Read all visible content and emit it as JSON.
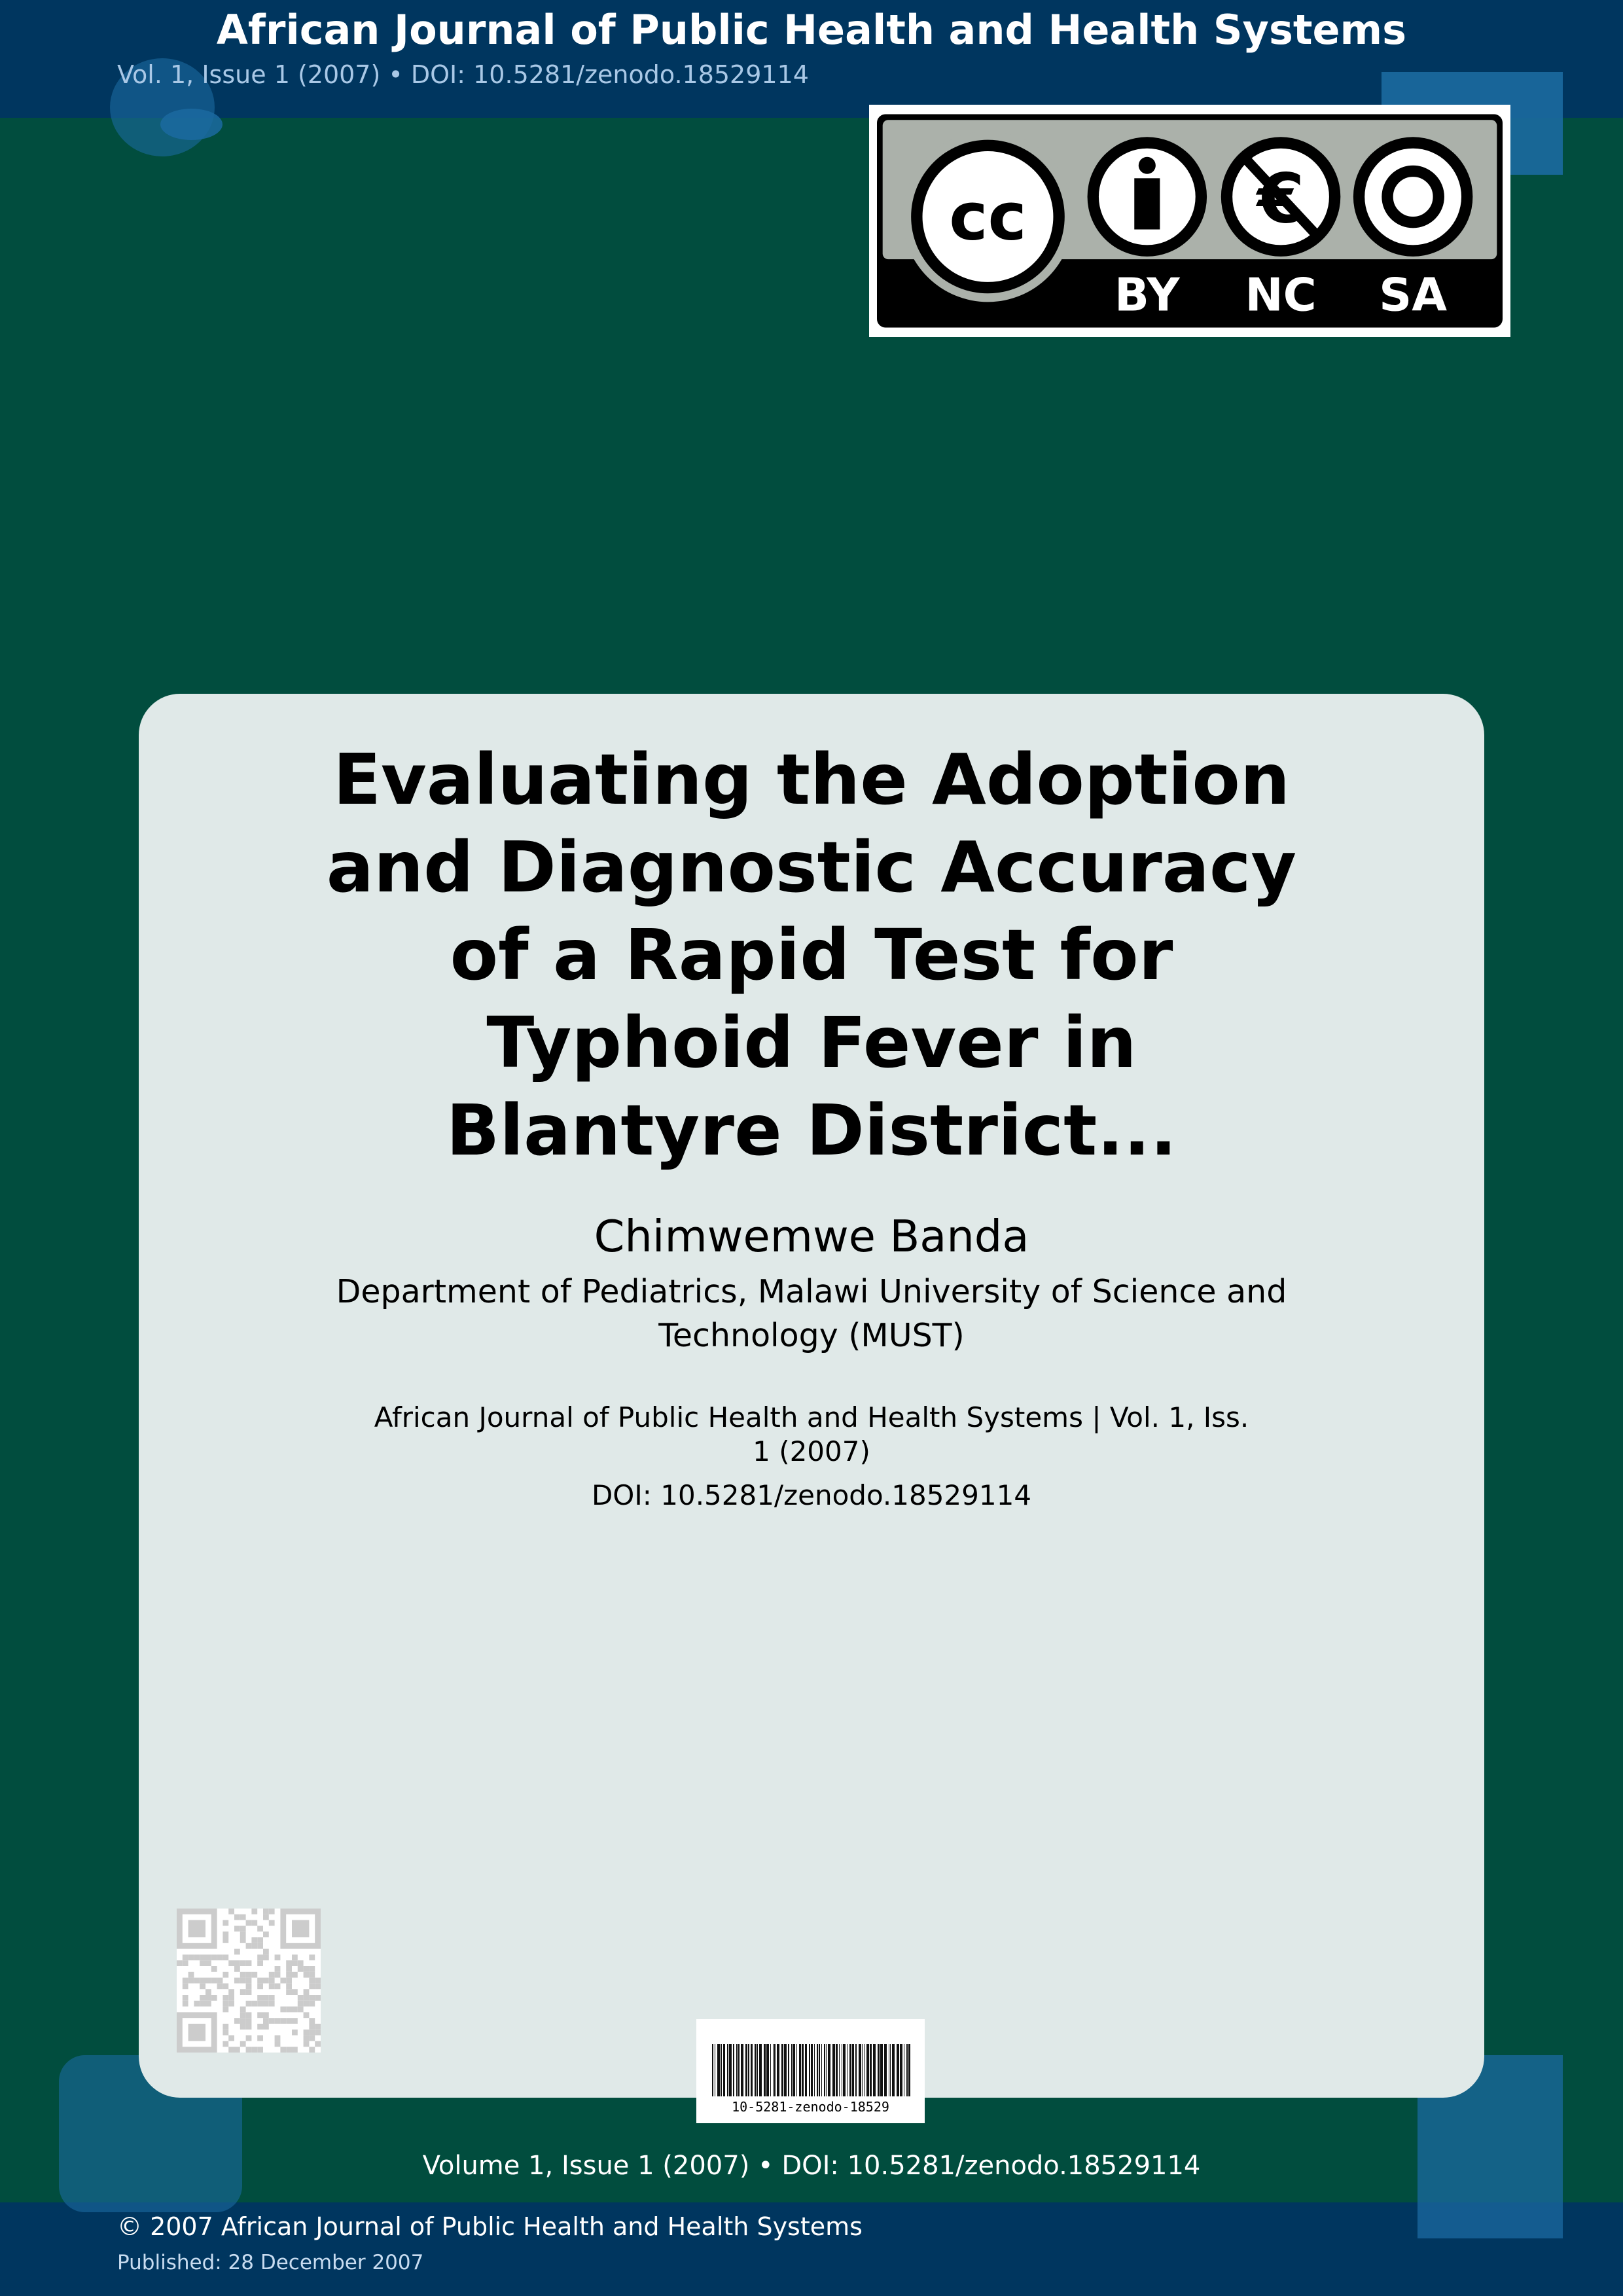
{
  "header": {
    "journal_title": "African Journal of Public Health and Health Systems",
    "issue_line": "Vol. 1, Issue 1 (2007) • DOI: 10.5281/zenodo.18529114"
  },
  "license": {
    "icon": "cc-by-nc-sa-badge",
    "labels": [
      "BY",
      "NC",
      "SA"
    ],
    "cc": "cc"
  },
  "article": {
    "title": "Evaluating the Adoption and Diagnostic Accuracy of a Rapid Test for Typhoid Fever in Blantyre District...",
    "author": "Chimwemwe Banda",
    "affiliation": "Department of Pediatrics, Malawi University of Science and Technology (MUST)",
    "citation": "African Journal of Public Health and Health Systems | Vol. 1, Iss. 1 (2007)",
    "doi": "DOI: 10.5281/zenodo.18529114"
  },
  "barcode": {
    "label": "10-5281-zenodo-18529"
  },
  "footer": {
    "volume_line": "Volume 1, Issue 1 (2007) • DOI: 10.5281/zenodo.18529114",
    "copyright": "© 2007 African Journal of Public Health and Health Systems",
    "published": "Published: 28 December 2007"
  },
  "colors": {
    "header": "#00365f",
    "background": "#014d3e",
    "card": "#e0e9e8",
    "accent": "#1b6aa0"
  }
}
